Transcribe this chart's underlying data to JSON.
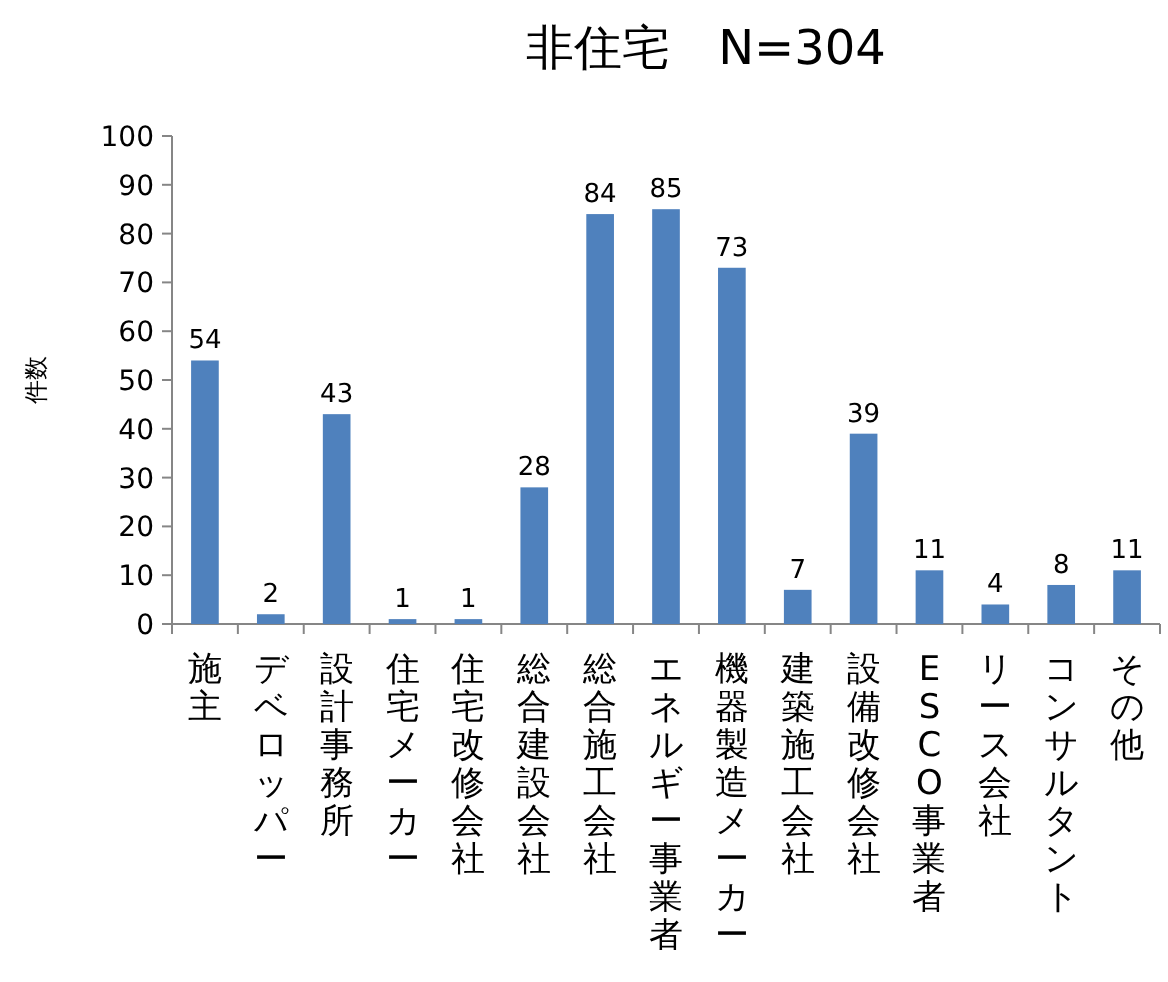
{
  "chart_data": {
    "type": "bar",
    "title": "非住宅　N=304",
    "ylabel": "件数",
    "categories": [
      "施主",
      "デベロッパー",
      "設計事務所",
      "住宅メーカー",
      "住宅改修会社",
      "総合建設会社",
      "総合施工会社",
      "エネルギー事業者",
      "機器製造メーカー",
      "建築施工会社",
      "設備改修会社",
      "ESCO事業者",
      "リース会社",
      "コンサルタント",
      "その他"
    ],
    "values": [
      54,
      2,
      43,
      1,
      1,
      28,
      84,
      85,
      73,
      7,
      39,
      11,
      4,
      8,
      11
    ],
    "color": "#4f81bd",
    "ylim": [
      0,
      100
    ],
    "yticks": [
      0,
      10,
      20,
      30,
      40,
      50,
      60,
      70,
      80,
      90,
      100
    ],
    "data_labels": true,
    "grid": false
  }
}
